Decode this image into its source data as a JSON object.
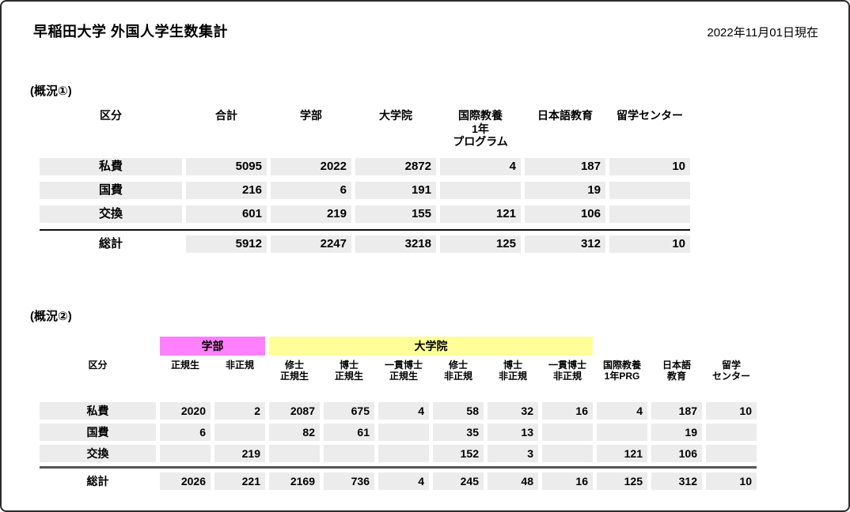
{
  "page": {
    "title": "早稲田大学 外国人学生数集計",
    "date": "2022年11月01日現在"
  },
  "colors": {
    "cell_background": "#ececec",
    "gakubu_band": "#ff80ff",
    "daigakuin_band": "#ffff99",
    "border": "#2b2b2b"
  },
  "table1": {
    "section_label": "(概況①)",
    "row_header": "区分",
    "columns": [
      "合計",
      "学部",
      "大学院",
      "国際教養\n1年\nプログラム",
      "日本語教育",
      "留学センター"
    ],
    "rows": [
      {
        "label": "私費",
        "values": [
          "5095",
          "2022",
          "2872",
          "4",
          "187",
          "10"
        ]
      },
      {
        "label": "国費",
        "values": [
          "216",
          "6",
          "191",
          "",
          "19",
          ""
        ]
      },
      {
        "label": "交換",
        "values": [
          "601",
          "219",
          "155",
          "121",
          "106",
          ""
        ]
      }
    ],
    "total": {
      "label": "総計",
      "values": [
        "5912",
        "2247",
        "3218",
        "125",
        "312",
        "10"
      ]
    }
  },
  "table2": {
    "section_label": "(概況②)",
    "row_header": "区分",
    "groups": [
      {
        "label": "学部",
        "color": "#ff80ff",
        "start": 0,
        "count": 2
      },
      {
        "label": "大学院",
        "color": "#ffff99",
        "start": 2,
        "count": 6
      }
    ],
    "columns": [
      "正規生",
      "非正規",
      "修士\n正規生",
      "博士\n正規生",
      "一貫博士\n正規生",
      "修士\n非正規",
      "博士\n非正規",
      "一貫博士\n非正規",
      "国際教養\n1年PRG",
      "日本語\n教育",
      "留学\nセンター"
    ],
    "rows": [
      {
        "label": "私費",
        "values": [
          "2020",
          "2",
          "2087",
          "675",
          "4",
          "58",
          "32",
          "16",
          "4",
          "187",
          "10"
        ]
      },
      {
        "label": "国費",
        "values": [
          "6",
          "",
          "82",
          "61",
          "",
          "35",
          "13",
          "",
          "",
          "19",
          ""
        ]
      },
      {
        "label": "交換",
        "values": [
          "",
          "219",
          "",
          "",
          "",
          "152",
          "3",
          "",
          "121",
          "106",
          ""
        ]
      }
    ],
    "total": {
      "label": "総計",
      "values": [
        "2026",
        "221",
        "2169",
        "736",
        "4",
        "245",
        "48",
        "16",
        "125",
        "312",
        "10"
      ]
    }
  }
}
